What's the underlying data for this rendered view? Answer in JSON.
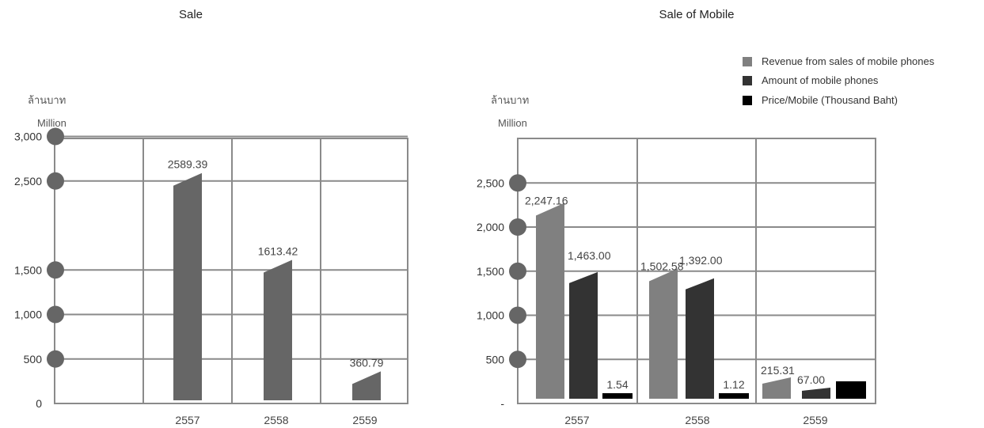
{
  "chart_data": [
    {
      "type": "bar",
      "title": "Sale",
      "unit_label_th": "ล้านบาท",
      "unit_label_en": "Million",
      "categories": [
        "2557",
        "2558",
        "2559"
      ],
      "values": [
        2589.39,
        1613.42,
        360.79
      ],
      "value_labels": [
        "2589.39",
        "1613.42",
        "360.79"
      ],
      "y_ticks": [
        "3,000",
        "2,500",
        "1,500",
        "1,000",
        "500",
        "0"
      ],
      "y_tick_values": [
        3000,
        2500,
        1500,
        1000,
        500,
        0
      ],
      "ylim": [
        0,
        3350
      ],
      "grid": true,
      "colors": {
        "bar": "#666666",
        "grid": "#888888",
        "dot": "#666666"
      }
    },
    {
      "type": "bar",
      "title": "Sale of Mobile",
      "unit_label_th": "ล้านบาท",
      "unit_label_en": "Million",
      "categories": [
        "2557",
        "2558",
        "2559"
      ],
      "y_ticks": [
        "2,500",
        "2,000",
        "1,500",
        "1,000",
        "500",
        "-"
      ],
      "y_tick_values": [
        2500,
        2000,
        1500,
        1000,
        500,
        0
      ],
      "ylim": [
        0,
        2750
      ],
      "grid": true,
      "legend_position": "top-right",
      "series": [
        {
          "name": "Revenue from sales of mobile phones",
          "color": "#808080",
          "values": [
            2247.16,
            1502.58,
            215.31
          ],
          "labels": [
            "2,247.16",
            "1,502.58",
            "215.31"
          ]
        },
        {
          "name": "Amount of mobile phones",
          "color": "#333333",
          "values": [
            1463.0,
            1392.0,
            67.0
          ],
          "labels": [
            "1,463.00",
            "1,392.00",
            "67.00"
          ]
        },
        {
          "name": "Price/Mobile (Thousand Baht)",
          "color": "#000000",
          "values": [
            1.54,
            1.12,
            1.0
          ],
          "labels": [
            "1.54",
            "1.12",
            ""
          ]
        }
      ],
      "colors": {
        "grid": "#888888",
        "dot": "#666666"
      }
    }
  ]
}
